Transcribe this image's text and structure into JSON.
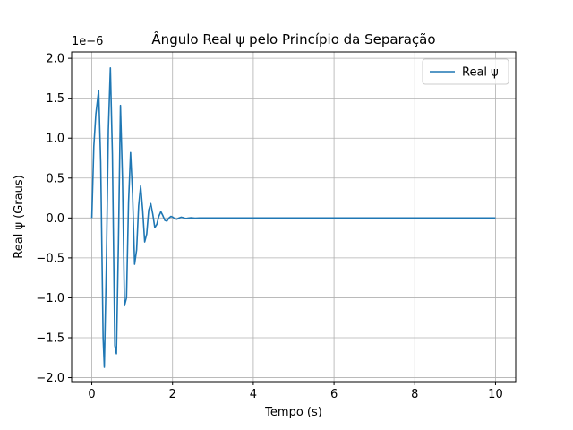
{
  "chart_data": {
    "type": "line",
    "title": "Ângulo Real ψ pelo Princípio da Separação",
    "xlabel": "Tempo (s)",
    "ylabel": "Real ψ (Graus)",
    "y_offset_label": "1e−6",
    "xlim": [
      -0.5,
      10.5
    ],
    "ylim": [
      -2.05,
      2.08
    ],
    "xticks": [
      0,
      2,
      4,
      6,
      8,
      10
    ],
    "xtick_labels": [
      "0",
      "2",
      "4",
      "6",
      "8",
      "10"
    ],
    "yticks": [
      -2.0,
      -1.5,
      -1.0,
      -0.5,
      0.0,
      0.5,
      1.0,
      1.5,
      2.0
    ],
    "ytick_labels": [
      "−2.0",
      "−1.5",
      "−1.0",
      "−0.5",
      "0.0",
      "0.5",
      "1.0",
      "1.5",
      "2.0"
    ],
    "grid": true,
    "legend_position": "top-right",
    "colors": {
      "series": "#1f77b4",
      "grid": "#b0b0b0",
      "frame": "#000000"
    },
    "series": [
      {
        "name": "Real ψ",
        "x": [
          0,
          0.05,
          0.1,
          0.17,
          0.22,
          0.28,
          0.31,
          0.36,
          0.41,
          0.46,
          0.51,
          0.57,
          0.61,
          0.66,
          0.71,
          0.76,
          0.81,
          0.86,
          0.91,
          0.96,
          1.01,
          1.06,
          1.11,
          1.16,
          1.21,
          1.26,
          1.31,
          1.36,
          1.41,
          1.46,
          1.51,
          1.56,
          1.61,
          1.66,
          1.71,
          1.76,
          1.81,
          1.86,
          1.91,
          1.96,
          2.01,
          2.06,
          2.11,
          2.16,
          2.21,
          2.26,
          2.31,
          2.36,
          2.41,
          2.46,
          2.51,
          2.56,
          2.61,
          2.66,
          2.71,
          2.76,
          2.81,
          2.86,
          2.91,
          2.96,
          3.0,
          4.0,
          5.0,
          6.0,
          7.0,
          8.0,
          9.0,
          10.0
        ],
        "values": [
          0,
          0.9,
          1.3,
          1.6,
          0.7,
          -1.5,
          -1.87,
          -0.6,
          1.1,
          1.88,
          0.8,
          -1.6,
          -1.7,
          -0.3,
          1.41,
          0.5,
          -1.1,
          -1.0,
          0.2,
          0.82,
          0.3,
          -0.58,
          -0.4,
          0.15,
          0.4,
          0.1,
          -0.3,
          -0.2,
          0.1,
          0.18,
          0.05,
          -0.12,
          -0.08,
          0.02,
          0.08,
          0.03,
          -0.03,
          -0.04,
          0.0,
          0.02,
          0.01,
          -0.01,
          -0.015,
          0.0,
          0.01,
          0.005,
          -0.005,
          -0.004,
          0.0,
          0.003,
          0.001,
          -0.002,
          -0.001,
          0.0,
          0.001,
          0.0,
          0.0,
          0.0,
          0.0,
          0.0,
          0.0,
          0.0,
          0.0,
          0.0,
          0.0,
          0.0,
          0.0,
          0.0
        ]
      }
    ]
  }
}
